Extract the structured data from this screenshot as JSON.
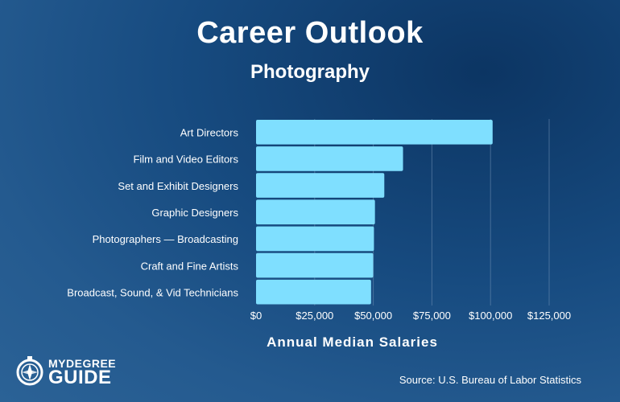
{
  "title": "Career Outlook",
  "subtitle": "Photography",
  "source": "Source: U.S. Bureau of Labor Statistics",
  "logo": {
    "line1": "MYDEGREE",
    "line2": "GUIDE",
    "icon": "compass-icon"
  },
  "colors": {
    "bar": "#7fdfff",
    "gridline": "#6f8fb3",
    "text": "#ffffff"
  },
  "chart_data": {
    "type": "bar",
    "orientation": "horizontal",
    "categories": [
      "Art Directors",
      "Film and Video Editors",
      "Set and Exhibit Designers",
      "Graphic Designers",
      "Photographers — Broadcasting",
      "Craft and Fine Artists",
      "Broadcast, Sound, & Vid Technicians"
    ],
    "values": [
      100890,
      62680,
      54700,
      50710,
      50280,
      49960,
      49050
    ],
    "xlabel": "Annual Median Salaries",
    "ylabel": "",
    "xlim": [
      0,
      125000
    ],
    "ticks": [
      0,
      25000,
      50000,
      75000,
      100000,
      125000
    ],
    "tick_labels": [
      "$0",
      "$25,000",
      "$50,000",
      "$75,000",
      "$100,000",
      "$125,000"
    ],
    "grid": true
  }
}
